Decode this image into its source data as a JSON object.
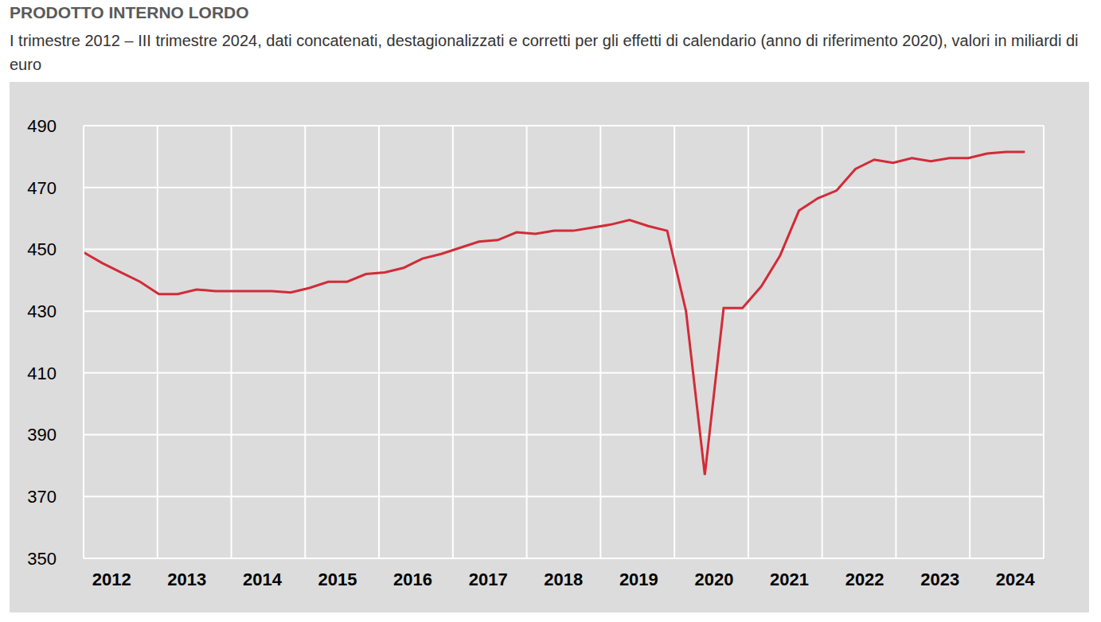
{
  "chart_data": {
    "type": "line",
    "title": "PRODOTTO INTERNO LORDO",
    "subtitle": "I trimestre 2012 – III trimestre 2024, dati concatenati, destagionalizzati e corretti per gli effetti di calendario (anno di riferimento 2020), valori in miliardi di euro",
    "categories": [
      null,
      "2012",
      null,
      null,
      null,
      "2013",
      null,
      null,
      null,
      "2014",
      null,
      null,
      null,
      "2015",
      null,
      null,
      null,
      "2016",
      null,
      null,
      null,
      "2017",
      null,
      null,
      null,
      "2018",
      null,
      null,
      null,
      "2019",
      null,
      null,
      null,
      "2020",
      null,
      null,
      null,
      "2021",
      null,
      null,
      null,
      "2022",
      null,
      null,
      null,
      "2023",
      null,
      null,
      null,
      "2024",
      null,
      null
    ],
    "values": [
      449,
      445.5,
      442.5,
      439.5,
      435.5,
      435.5,
      437,
      436.5,
      436.5,
      436.5,
      436.5,
      436,
      437.5,
      439.5,
      439.5,
      442,
      442.5,
      444,
      447,
      448.5,
      450.5,
      452.5,
      453,
      455.5,
      455,
      456,
      456,
      457,
      458,
      459.5,
      457.5,
      456,
      430,
      377,
      431,
      431,
      438,
      448,
      462.5,
      466.5,
      469,
      476,
      479,
      478,
      479.5,
      478.5,
      479.5,
      479.5,
      481,
      481.5,
      481.5,
      null
    ],
    "color": "#d22b38",
    "ylim": [
      350,
      490
    ],
    "yticks": [
      350,
      370,
      390,
      410,
      430,
      450,
      470,
      490
    ],
    "grid": true
  }
}
